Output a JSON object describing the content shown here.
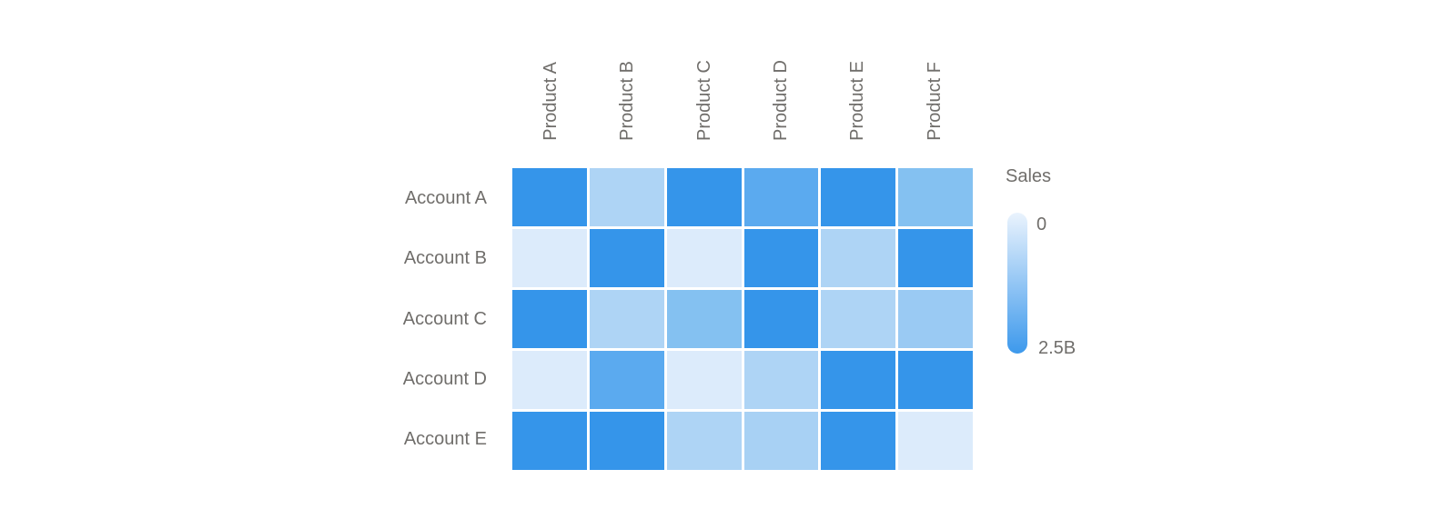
{
  "chart_data": {
    "type": "heatmap",
    "x_categories": [
      "Product A",
      "Product B",
      "Product C",
      "Product D",
      "Product E",
      "Product F"
    ],
    "y_categories": [
      "Account A",
      "Account B",
      "Account C",
      "Account D",
      "Account E"
    ],
    "values_estimated_billions": [
      [
        2.4,
        0.9,
        2.4,
        2.1,
        2.4,
        1.5
      ],
      [
        0.2,
        2.4,
        0.2,
        2.4,
        0.9,
        2.4
      ],
      [
        2.4,
        0.9,
        1.5,
        2.4,
        0.9,
        1.2
      ],
      [
        0.2,
        2.1,
        0.2,
        0.9,
        2.4,
        2.4
      ],
      [
        2.4,
        2.4,
        0.9,
        1.0,
        2.4,
        0.2
      ]
    ],
    "cell_colors": [
      [
        "#3595EA",
        "#AED4F5",
        "#3595EA",
        "#5BAAEF",
        "#3595EA",
        "#84C1F1"
      ],
      [
        "#DCEBFB",
        "#3595EA",
        "#DCEBFB",
        "#3595EA",
        "#AED4F5",
        "#3595EA"
      ],
      [
        "#3595EA",
        "#AED4F5",
        "#84C1F1",
        "#3595EA",
        "#AED4F5",
        "#9ACAF3"
      ],
      [
        "#DCEBFB",
        "#5BAAEF",
        "#DCEBFB",
        "#AED4F5",
        "#3595EA",
        "#3595EA"
      ],
      [
        "#3595EA",
        "#3595EA",
        "#AED4F5",
        "#A8D1F4",
        "#3595EA",
        "#DCEBFB"
      ]
    ],
    "value_range": [
      0,
      2500000000
    ],
    "grid": "off",
    "legend_position": "right"
  },
  "legend": {
    "title": "Sales",
    "min_label": "0",
    "max_label": "2.5B",
    "gradient_top": "#EAF3FD",
    "gradient_bottom": "#3D99EC"
  },
  "colors": {
    "background": "#FFFFFF",
    "label_text": "#706E6B",
    "cell_gap": "#FFFFFF"
  }
}
